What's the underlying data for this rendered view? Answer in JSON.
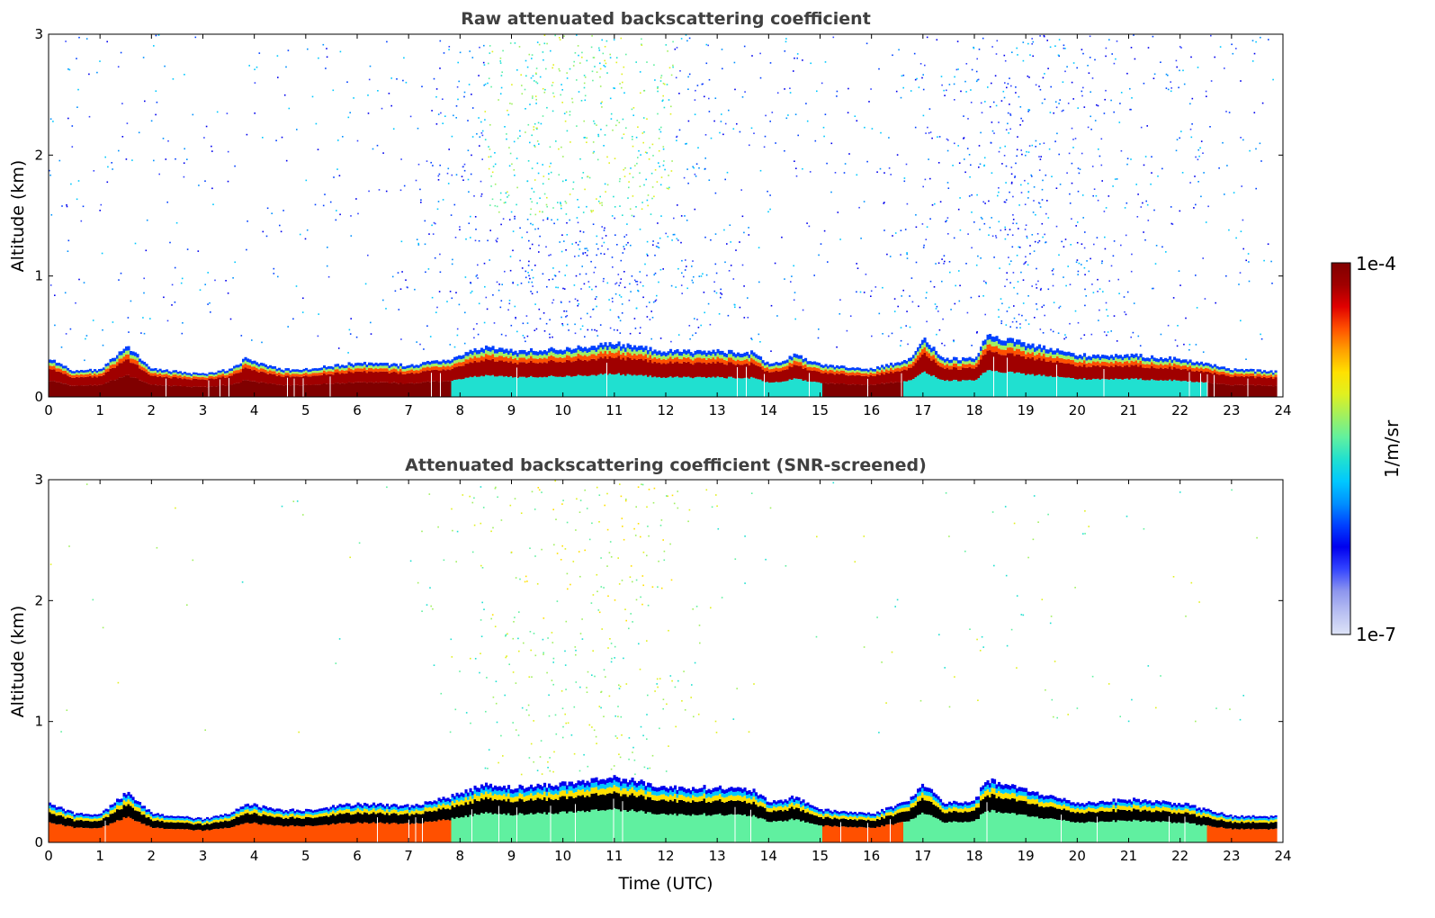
{
  "chart_data": [
    {
      "type": "heatmap",
      "title": "Raw attenuated backscattering coefficient",
      "xlabel": "",
      "ylabel": "Altitude (km)",
      "xlim": [
        0,
        24
      ],
      "ylim": [
        0,
        3
      ],
      "xticks": [
        "0",
        "1",
        "2",
        "3",
        "4",
        "5",
        "6",
        "7",
        "8",
        "9",
        "10",
        "11",
        "12",
        "13",
        "14",
        "15",
        "16",
        "17",
        "18",
        "19",
        "20",
        "21",
        "22",
        "23",
        "24"
      ],
      "yticks": [
        "0",
        "1",
        "2",
        "3"
      ],
      "screened": false,
      "boundary_layer_top_km": [
        [
          0,
          0.3
        ],
        [
          0.5,
          0.2
        ],
        [
          1,
          0.22
        ],
        [
          1.5,
          0.4
        ],
        [
          2,
          0.22
        ],
        [
          2.5,
          0.2
        ],
        [
          3,
          0.18
        ],
        [
          3.5,
          0.22
        ],
        [
          3.8,
          0.3
        ],
        [
          4.5,
          0.22
        ],
        [
          5,
          0.22
        ],
        [
          6,
          0.27
        ],
        [
          7,
          0.25
        ],
        [
          7.8,
          0.3
        ],
        [
          8.5,
          0.4
        ],
        [
          9,
          0.36
        ],
        [
          10,
          0.38
        ],
        [
          11,
          0.42
        ],
        [
          12,
          0.36
        ],
        [
          13,
          0.36
        ],
        [
          13.7,
          0.35
        ],
        [
          14,
          0.25
        ],
        [
          14.5,
          0.33
        ],
        [
          15,
          0.25
        ],
        [
          16,
          0.22
        ],
        [
          16.7,
          0.3
        ],
        [
          17,
          0.45
        ],
        [
          17.4,
          0.3
        ],
        [
          18,
          0.3
        ],
        [
          18.2,
          0.48
        ],
        [
          19,
          0.42
        ],
        [
          20,
          0.33
        ],
        [
          21,
          0.33
        ],
        [
          22,
          0.3
        ],
        [
          23,
          0.22
        ],
        [
          23.8,
          0.2
        ]
      ]
    },
    {
      "type": "heatmap",
      "title": "Attenuated backscattering coefficient (SNR-screened)",
      "xlabel": "Time (UTC)",
      "ylabel": "Altitude (km)",
      "xlim": [
        0,
        24
      ],
      "ylim": [
        0,
        3
      ],
      "xticks": [
        "0",
        "1",
        "2",
        "3",
        "4",
        "5",
        "6",
        "7",
        "8",
        "9",
        "10",
        "11",
        "12",
        "13",
        "14",
        "15",
        "16",
        "17",
        "18",
        "19",
        "20",
        "21",
        "22",
        "23",
        "24"
      ],
      "yticks": [
        "0",
        "1",
        "2",
        "3"
      ],
      "screened": true,
      "boundary_layer_top_km": [
        [
          0,
          0.3
        ],
        [
          0.5,
          0.22
        ],
        [
          1,
          0.22
        ],
        [
          1.5,
          0.38
        ],
        [
          2,
          0.22
        ],
        [
          2.5,
          0.2
        ],
        [
          3,
          0.18
        ],
        [
          3.5,
          0.22
        ],
        [
          3.8,
          0.3
        ],
        [
          4.5,
          0.25
        ],
        [
          5,
          0.25
        ],
        [
          6,
          0.3
        ],
        [
          7,
          0.28
        ],
        [
          7.8,
          0.35
        ],
        [
          8.5,
          0.45
        ],
        [
          9,
          0.42
        ],
        [
          10,
          0.45
        ],
        [
          11,
          0.5
        ],
        [
          12,
          0.42
        ],
        [
          13,
          0.42
        ],
        [
          13.7,
          0.4
        ],
        [
          14,
          0.3
        ],
        [
          14.5,
          0.35
        ],
        [
          15,
          0.25
        ],
        [
          16,
          0.22
        ],
        [
          16.7,
          0.32
        ],
        [
          17,
          0.45
        ],
        [
          17.4,
          0.3
        ],
        [
          18,
          0.32
        ],
        [
          18.2,
          0.48
        ],
        [
          19,
          0.4
        ],
        [
          20,
          0.3
        ],
        [
          21,
          0.33
        ],
        [
          22,
          0.3
        ],
        [
          23,
          0.2
        ],
        [
          23.8,
          0.2
        ]
      ]
    }
  ],
  "colorbar": {
    "max_label": "1e-4",
    "min_label": "1e-7",
    "unit_label": "1/m/sr",
    "colors": [
      "#dde3f7",
      "#b9c0f2",
      "#8c95ee",
      "#3344ff",
      "#0000ee",
      "#0040ff",
      "#0090ff",
      "#00c8ff",
      "#20e0d0",
      "#60f0a0",
      "#a0f060",
      "#e0f020",
      "#ffe000",
      "#ffa000",
      "#ff5000",
      "#e00000",
      "#a00000",
      "#800000"
    ]
  }
}
